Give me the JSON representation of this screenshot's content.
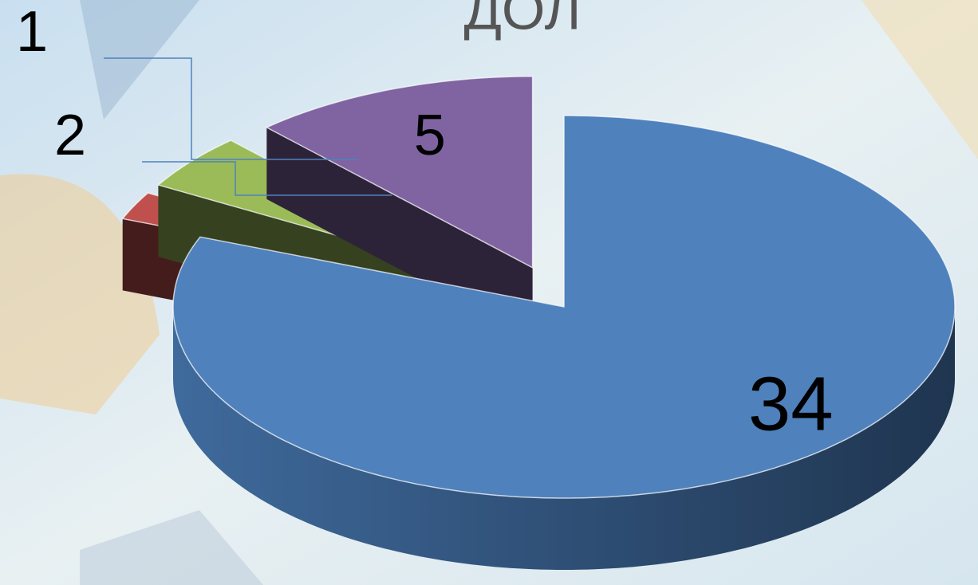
{
  "chart_data": {
    "type": "pie3d",
    "title": "ДОЛ",
    "categories": [
      null,
      null,
      null,
      null
    ],
    "values": [
      34,
      1,
      2,
      5
    ],
    "colors": [
      "#4f81bd",
      "#c0504d",
      "#9bbb59",
      "#8064a2"
    ]
  }
}
